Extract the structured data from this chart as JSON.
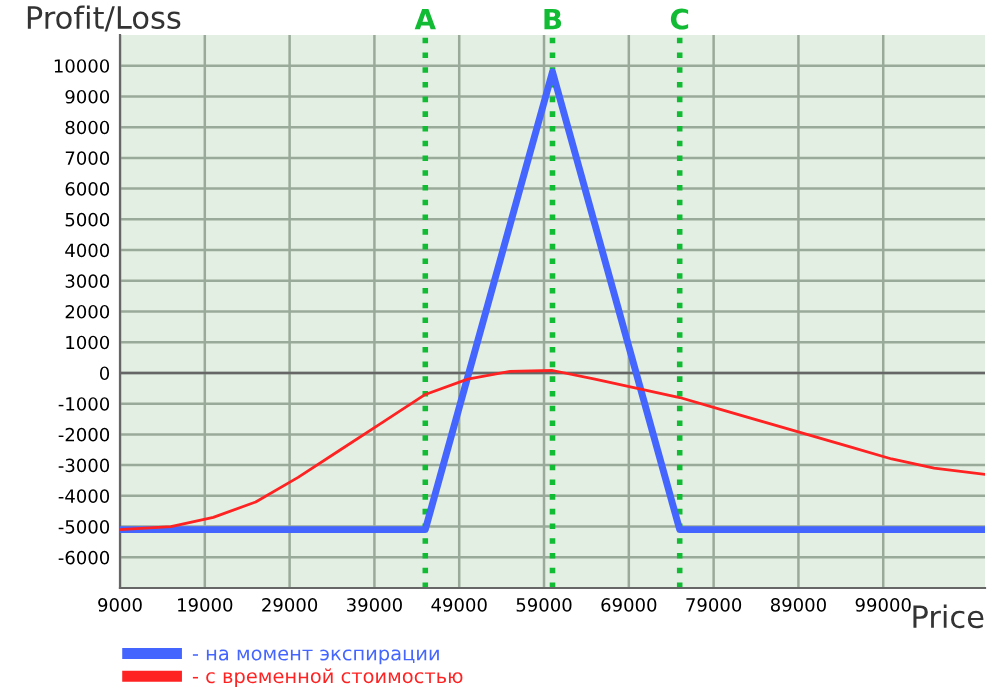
{
  "chart_data": {
    "type": "line",
    "xlabel": "Price",
    "ylabel": "Profit/Loss",
    "xlim": [
      9000,
      111000
    ],
    "ylim": [
      -7000,
      11000
    ],
    "xticks": [
      9000,
      19000,
      29000,
      39000,
      49000,
      59000,
      69000,
      79000,
      89000,
      99000
    ],
    "yticks": [
      -6000,
      -5000,
      -4000,
      -3000,
      -2000,
      -1000,
      0,
      1000,
      2000,
      3000,
      4000,
      5000,
      6000,
      7000,
      8000,
      9000,
      10000
    ],
    "grid": true,
    "legend": "bottom left",
    "series": [
      {
        "name": "- на момент экспирации",
        "color": "#4466ff",
        "x": [
          9000,
          45000,
          60000,
          75000,
          111000
        ],
        "values": [
          -5100,
          -5100,
          9800,
          -5100,
          -5100
        ]
      },
      {
        "name": "- с временной стоимостью",
        "color": "#ff2222",
        "x": [
          9000,
          15000,
          20000,
          25000,
          30000,
          35000,
          40000,
          45000,
          50000,
          55000,
          60000,
          65000,
          70000,
          75000,
          80000,
          85000,
          90000,
          95000,
          100000,
          105000,
          111000
        ],
        "values": [
          -5100,
          -5000,
          -4700,
          -4200,
          -3400,
          -2500,
          -1600,
          -700,
          -200,
          50,
          80,
          -200,
          -500,
          -800,
          -1200,
          -1600,
          -2000,
          -2400,
          -2800,
          -3100,
          -3300
        ]
      }
    ],
    "ref_lines": [
      {
        "axis": "x",
        "value": 45000,
        "label": "A",
        "color": "#11bb33",
        "line_style": "dotted"
      },
      {
        "axis": "x",
        "value": 60000,
        "label": "B",
        "color": "#11bb33",
        "line_style": "dotted"
      },
      {
        "axis": "x",
        "value": 75000,
        "label": "C",
        "color": "#11bb33",
        "line_style": "dotted"
      }
    ]
  }
}
